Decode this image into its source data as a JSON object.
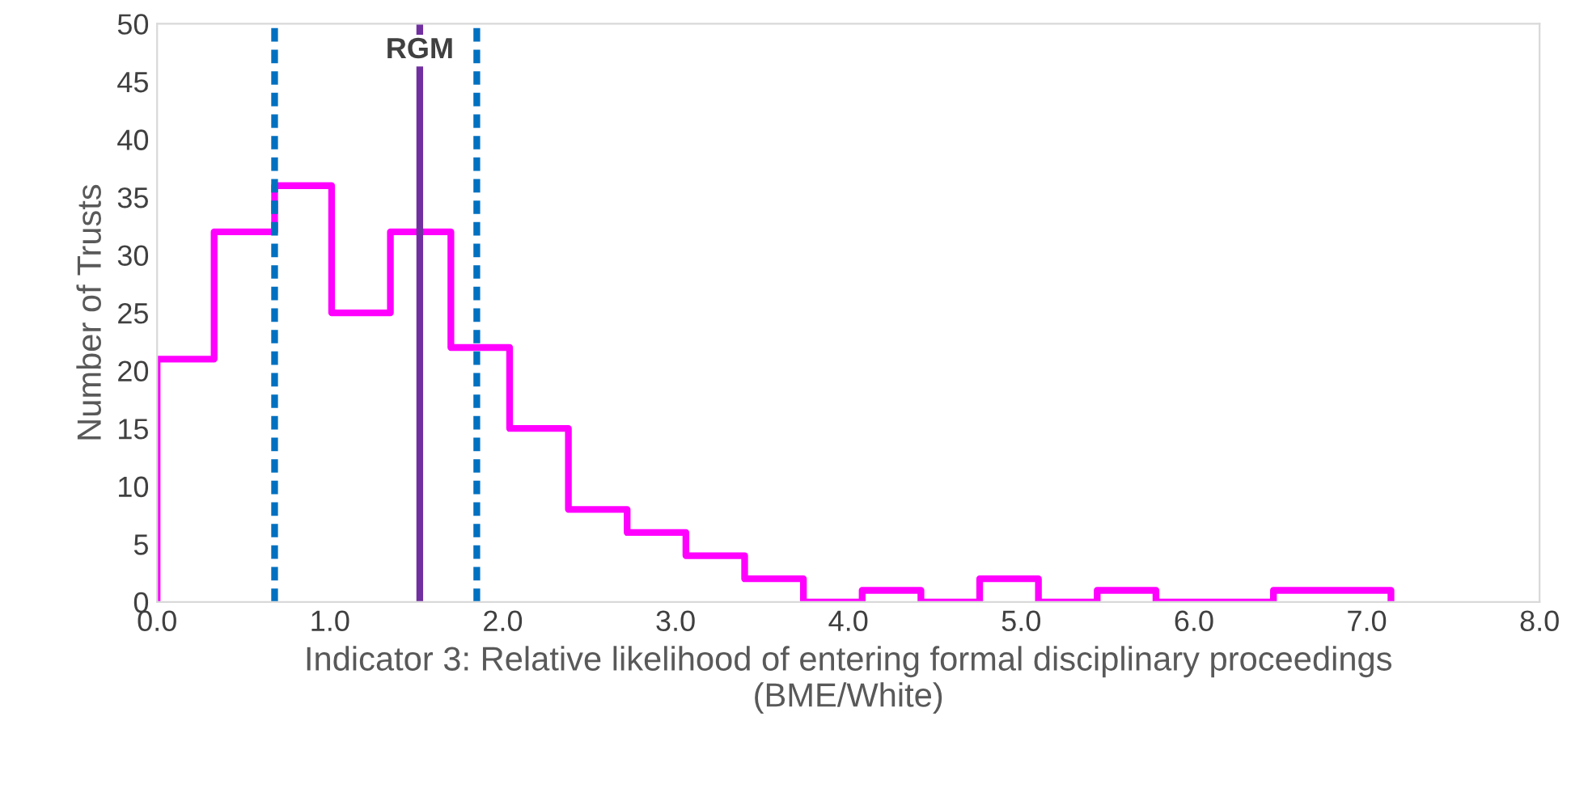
{
  "chart_data": {
    "type": "histogram",
    "xlabel": "Indicator 3: Relative likelihood of entering formal disciplinary proceedings\n(BME/White)",
    "ylabel": "Number of Trusts",
    "bins": [
      0,
      0.33,
      0.68,
      1.01,
      1.35,
      1.7,
      2.04,
      2.38,
      2.72,
      3.06,
      3.4,
      3.74,
      4.08,
      4.42,
      4.76,
      5.1,
      5.44,
      5.78,
      6.12,
      6.46,
      6.8,
      7.14
    ],
    "values": [
      21,
      32,
      36,
      25,
      32,
      22,
      15,
      8,
      6,
      4,
      2,
      0,
      1,
      0,
      2,
      0,
      1,
      0,
      0,
      1,
      1
    ],
    "color": "#ff00ff",
    "xlim": [
      0,
      8
    ],
    "xticks": [
      {
        "value": 0,
        "label": "0.0"
      },
      {
        "value": 1,
        "label": "1.0"
      },
      {
        "value": 2,
        "label": "2.0"
      },
      {
        "value": 3,
        "label": "3.0"
      },
      {
        "value": 4,
        "label": "4.0"
      },
      {
        "value": 5,
        "label": "5.0"
      },
      {
        "value": 6,
        "label": "6.0"
      },
      {
        "value": 7,
        "label": "7.0"
      },
      {
        "value": 8,
        "label": "8.0"
      }
    ],
    "ylim": [
      0,
      50
    ],
    "yticks": [
      0,
      5,
      10,
      15,
      20,
      25,
      30,
      35,
      40,
      45,
      50
    ],
    "ref_lines": [
      {
        "axis": "x",
        "value": 0.68,
        "color": "#0070c0",
        "line_style": "dashed"
      },
      {
        "axis": "x",
        "value": 1.52,
        "label": "RGM",
        "color": "#7030a0",
        "line_style": "solid"
      },
      {
        "axis": "x",
        "value": 1.85,
        "color": "#0070c0",
        "line_style": "dashed"
      }
    ],
    "grid": false,
    "legend": false
  }
}
